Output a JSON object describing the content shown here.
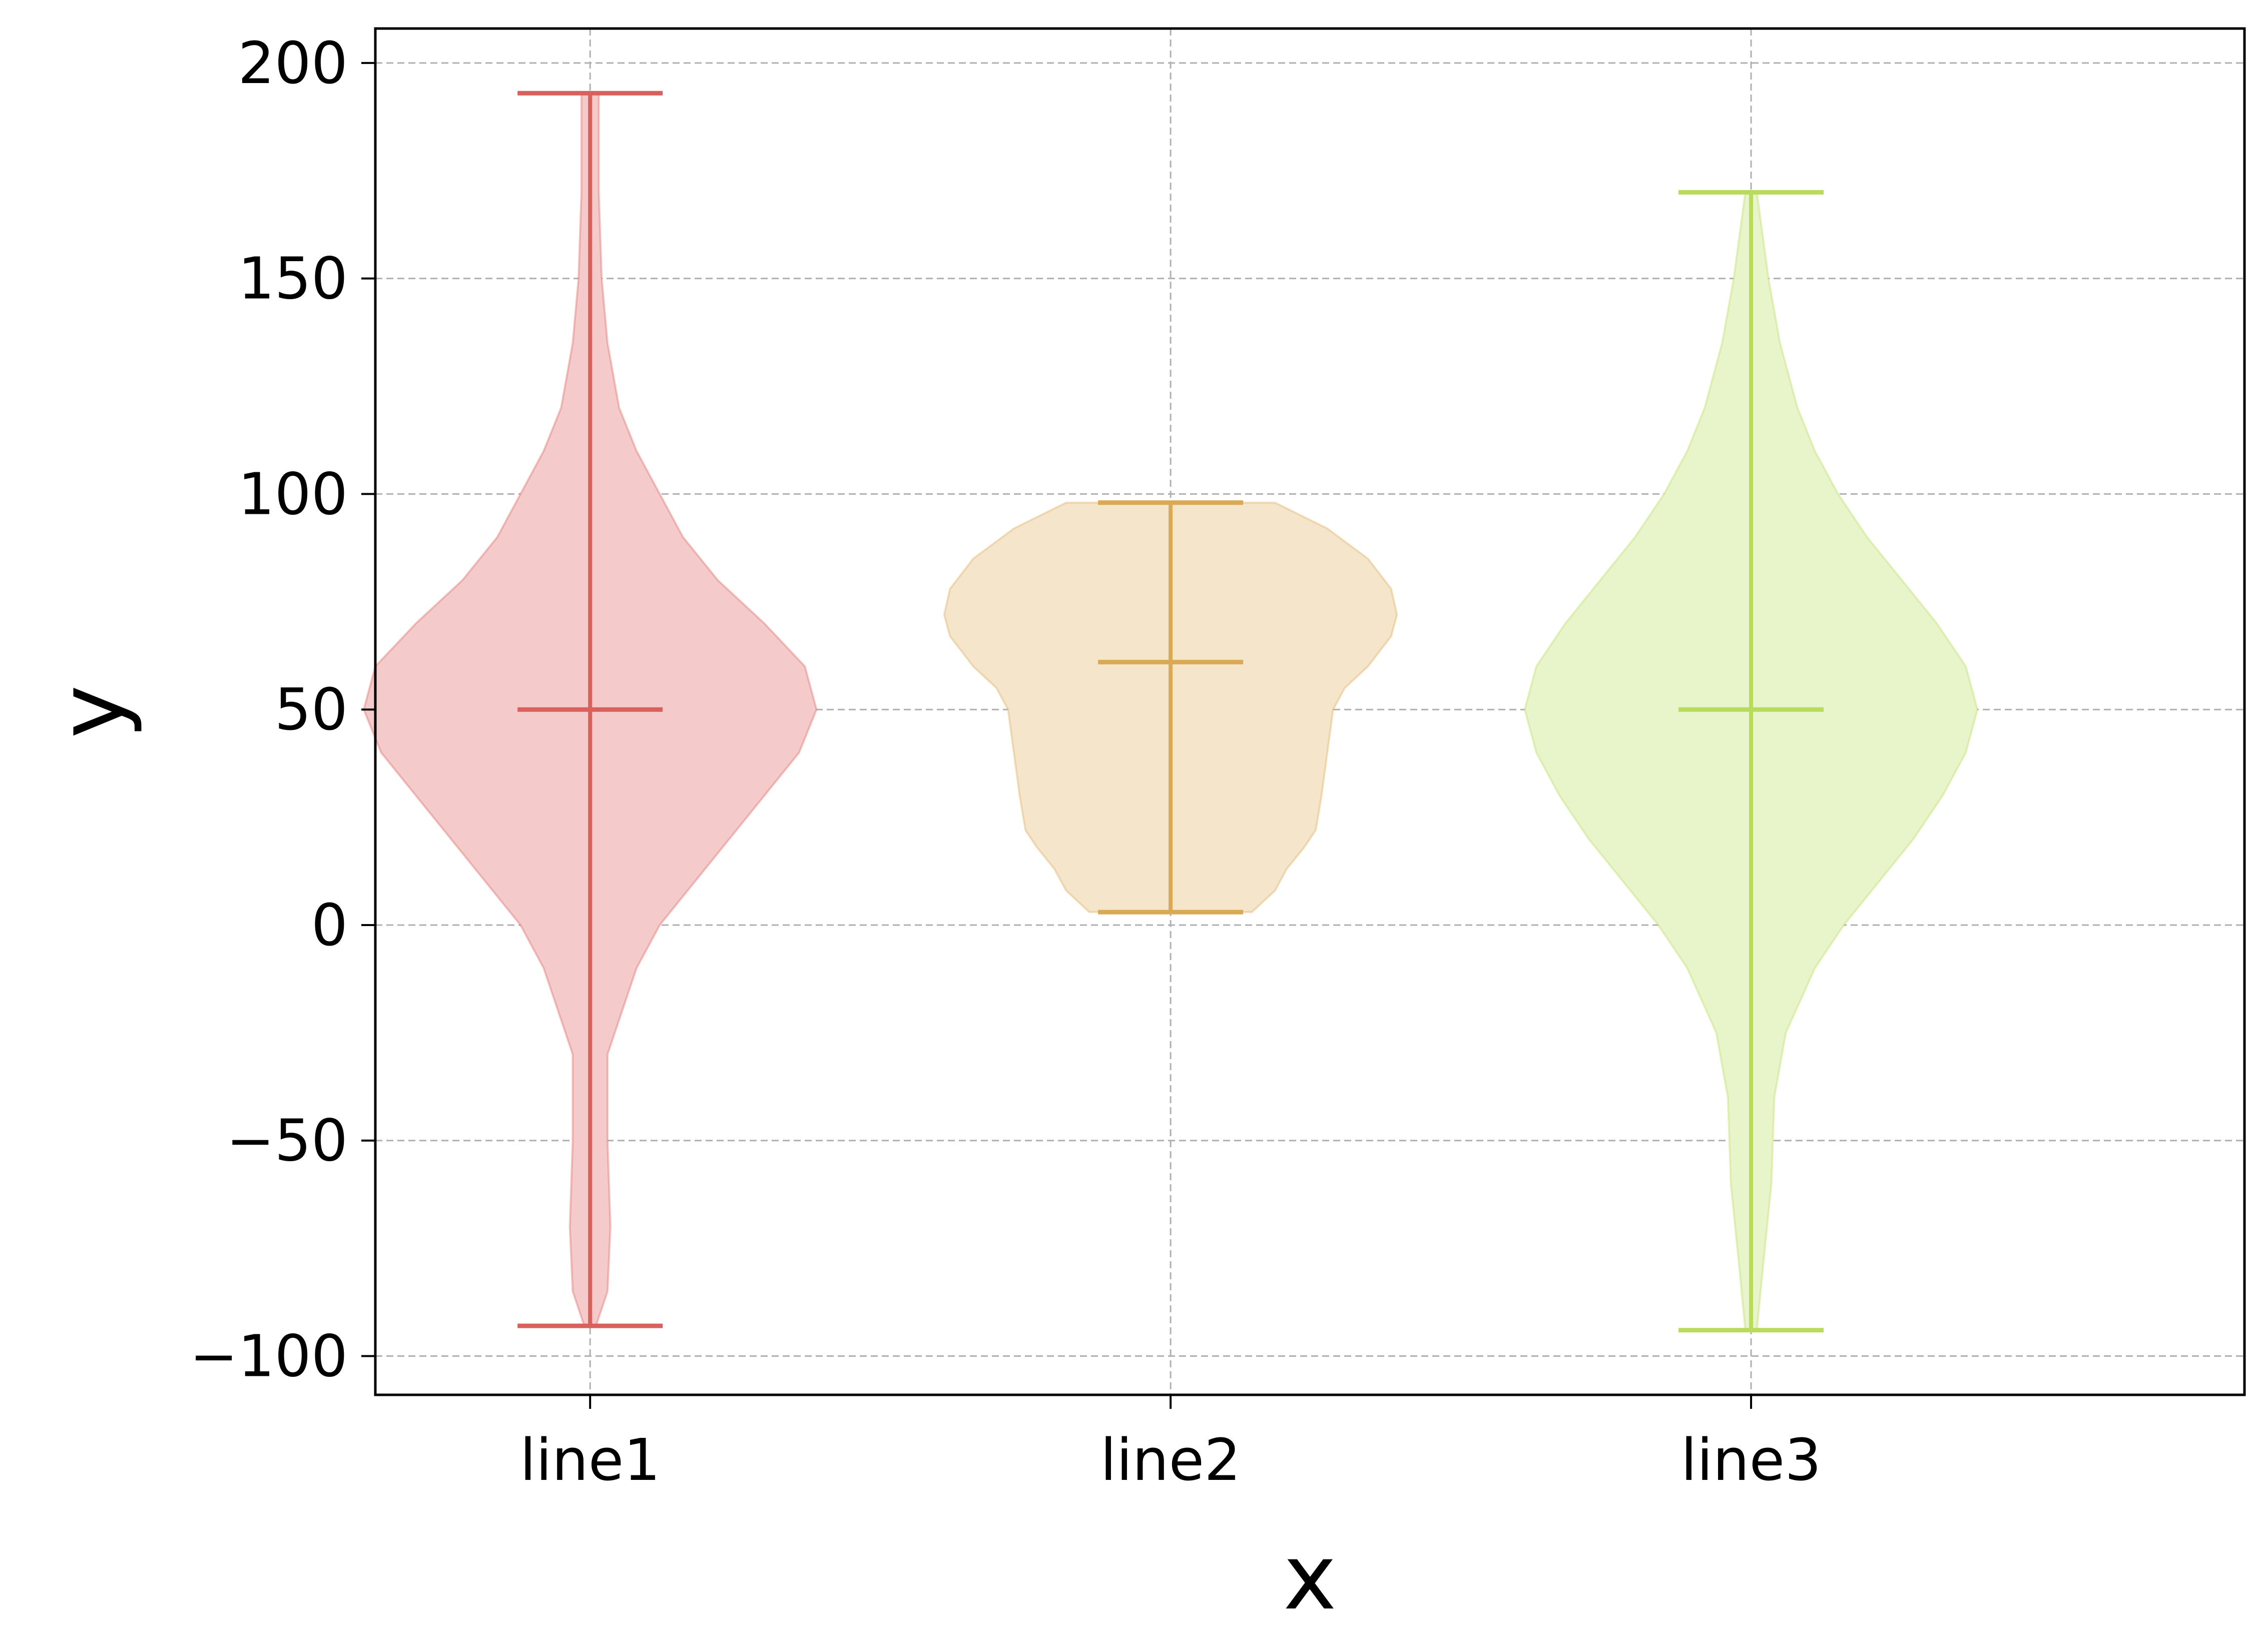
{
  "chart_data": {
    "type": "violin",
    "xlabel": "x",
    "ylabel": "y",
    "categories": [
      "line1",
      "line2",
      "line3"
    ],
    "yticks": [
      -100,
      -50,
      0,
      50,
      100,
      150,
      200
    ],
    "ytick_labels": [
      "−100",
      "−50",
      "0",
      "50",
      "100",
      "150",
      "200"
    ],
    "ylim": [
      -109,
      208
    ],
    "xlim": [
      0.63,
      3.85
    ],
    "grid": true,
    "colors": {
      "line1": "#d9605c",
      "line2": "#dba956",
      "line3": "#b9db5c"
    },
    "fill_colors": {
      "line1": "#f4caca",
      "line2": "#f4e5cb",
      "line3": "#e8f4ca"
    },
    "series": [
      {
        "name": "line1",
        "min": -93,
        "max": 193,
        "mean": 50,
        "profile": [
          [
            -93,
            0.01
          ],
          [
            -85,
            0.03
          ],
          [
            -70,
            0.035
          ],
          [
            -50,
            0.03
          ],
          [
            -30,
            0.03
          ],
          [
            -10,
            0.08
          ],
          [
            0,
            0.12
          ],
          [
            10,
            0.18
          ],
          [
            20,
            0.24
          ],
          [
            30,
            0.3
          ],
          [
            40,
            0.36
          ],
          [
            50,
            0.39
          ],
          [
            60,
            0.37
          ],
          [
            70,
            0.3
          ],
          [
            80,
            0.22
          ],
          [
            90,
            0.16
          ],
          [
            100,
            0.12
          ],
          [
            110,
            0.08
          ],
          [
            120,
            0.05
          ],
          [
            135,
            0.03
          ],
          [
            150,
            0.02
          ],
          [
            170,
            0.015
          ],
          [
            193,
            0.015
          ]
        ]
      },
      {
        "name": "line2",
        "min": 3,
        "max": 98,
        "mean": 61,
        "profile": [
          [
            3,
            0.14
          ],
          [
            8,
            0.18
          ],
          [
            13,
            0.2
          ],
          [
            18,
            0.23
          ],
          [
            22,
            0.25
          ],
          [
            30,
            0.26
          ],
          [
            40,
            0.27
          ],
          [
            50,
            0.28
          ],
          [
            55,
            0.3
          ],
          [
            60,
            0.34
          ],
          [
            67,
            0.38
          ],
          [
            72,
            0.39
          ],
          [
            78,
            0.38
          ],
          [
            85,
            0.34
          ],
          [
            92,
            0.27
          ],
          [
            98,
            0.18
          ]
        ]
      },
      {
        "name": "line3",
        "min": -94,
        "max": 170,
        "mean": 50,
        "profile": [
          [
            -94,
            0.01
          ],
          [
            -80,
            0.02
          ],
          [
            -60,
            0.035
          ],
          [
            -40,
            0.04
          ],
          [
            -25,
            0.06
          ],
          [
            -10,
            0.11
          ],
          [
            0,
            0.16
          ],
          [
            10,
            0.22
          ],
          [
            20,
            0.28
          ],
          [
            30,
            0.33
          ],
          [
            40,
            0.37
          ],
          [
            50,
            0.39
          ],
          [
            60,
            0.37
          ],
          [
            70,
            0.32
          ],
          [
            80,
            0.26
          ],
          [
            90,
            0.2
          ],
          [
            100,
            0.15
          ],
          [
            110,
            0.11
          ],
          [
            120,
            0.08
          ],
          [
            135,
            0.05
          ],
          [
            150,
            0.03
          ],
          [
            170,
            0.01
          ]
        ]
      }
    ]
  }
}
